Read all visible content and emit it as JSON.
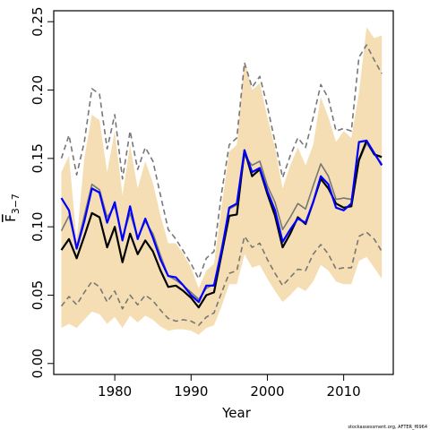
{
  "chart_data": {
    "type": "line",
    "xlabel": "Year",
    "ylabel": "F",
    "ylabel_subscript": "3−7",
    "footnote": "stockassessment.org, AFTER_f6964",
    "xlim": [
      1972,
      2016.5
    ],
    "ylim": [
      -0.008,
      0.258
    ],
    "x_ticks": [
      1980,
      1990,
      2000,
      2010
    ],
    "x_tick_labels": [
      "1980",
      "1990",
      "2000",
      "2010"
    ],
    "y_ticks": [
      0.0,
      0.05,
      0.1,
      0.15,
      0.2,
      0.25
    ],
    "y_tick_labels": [
      "0.00",
      "0.05",
      "0.10",
      "0.15",
      "0.20",
      "0.25"
    ],
    "colors": {
      "band": "#f5deb3",
      "black": "#000000",
      "blue": "#0000ff",
      "gray": "#777777",
      "dashed": "#777777"
    },
    "years": [
      1973,
      1974,
      1975,
      1976,
      1977,
      1978,
      1979,
      1980,
      1981,
      1982,
      1983,
      1984,
      1985,
      1986,
      1987,
      1988,
      1989,
      1990,
      1991,
      1992,
      1993,
      1994,
      1995,
      1996,
      1997,
      1998,
      1999,
      2000,
      2001,
      2002,
      2003,
      2004,
      2005,
      2006,
      2007,
      2008,
      2009,
      2010,
      2011,
      2012,
      2013,
      2014,
      2015
    ],
    "band": {
      "upper": [
        0.14,
        0.152,
        0.09,
        0.15,
        0.182,
        0.178,
        0.14,
        0.17,
        0.123,
        0.16,
        0.128,
        0.148,
        0.132,
        0.108,
        0.088,
        0.088,
        0.08,
        0.07,
        0.055,
        0.068,
        0.073,
        0.115,
        0.155,
        0.16,
        0.222,
        0.2,
        0.205,
        0.18,
        0.158,
        0.128,
        0.145,
        0.158,
        0.145,
        0.16,
        0.195,
        0.18,
        0.162,
        0.17,
        0.165,
        0.198,
        0.246,
        0.238,
        0.24
      ],
      "lower": [
        0.026,
        0.029,
        0.026,
        0.032,
        0.038,
        0.036,
        0.029,
        0.034,
        0.026,
        0.035,
        0.03,
        0.035,
        0.032,
        0.027,
        0.024,
        0.025,
        0.025,
        0.024,
        0.021,
        0.026,
        0.028,
        0.042,
        0.058,
        0.058,
        0.08,
        0.07,
        0.072,
        0.062,
        0.053,
        0.045,
        0.05,
        0.056,
        0.053,
        0.06,
        0.072,
        0.068,
        0.06,
        0.058,
        0.058,
        0.075,
        0.078,
        0.07,
        0.062
      ]
    },
    "series": [
      {
        "color": "#777777",
        "style": "dashed",
        "width": 1.6,
        "values": [
          0.15,
          0.167,
          0.138,
          0.162,
          0.201,
          0.197,
          0.157,
          0.182,
          0.135,
          0.17,
          0.142,
          0.158,
          0.148,
          0.123,
          0.098,
          0.091,
          0.082,
          0.073,
          0.062,
          0.077,
          0.082,
          0.125,
          0.16,
          0.165,
          0.22,
          0.202,
          0.21,
          0.188,
          0.162,
          0.136,
          0.152,
          0.165,
          0.158,
          0.18,
          0.204,
          0.194,
          0.17,
          0.172,
          0.17,
          0.224,
          0.233,
          0.222,
          0.212
        ]
      },
      {
        "color": "#777777",
        "style": "dashed",
        "width": 1.6,
        "values": [
          0.042,
          0.049,
          0.043,
          0.052,
          0.06,
          0.056,
          0.045,
          0.053,
          0.04,
          0.05,
          0.043,
          0.05,
          0.046,
          0.039,
          0.033,
          0.031,
          0.032,
          0.031,
          0.028,
          0.034,
          0.037,
          0.052,
          0.066,
          0.068,
          0.093,
          0.085,
          0.088,
          0.076,
          0.066,
          0.057,
          0.063,
          0.069,
          0.068,
          0.08,
          0.087,
          0.08,
          0.069,
          0.07,
          0.07,
          0.093,
          0.096,
          0.091,
          0.082
        ]
      },
      {
        "color": "#777777",
        "style": "solid",
        "width": 1.6,
        "values": [
          0.097,
          0.108,
          0.085,
          0.108,
          0.131,
          0.127,
          0.107,
          0.115,
          0.092,
          0.11,
          0.092,
          0.104,
          0.095,
          0.079,
          0.064,
          0.061,
          0.057,
          0.052,
          0.047,
          0.055,
          0.058,
          0.085,
          0.113,
          0.116,
          0.152,
          0.145,
          0.148,
          0.13,
          0.118,
          0.098,
          0.107,
          0.117,
          0.113,
          0.13,
          0.146,
          0.137,
          0.12,
          0.121,
          0.12,
          0.148,
          0.161,
          0.153,
          0.146
        ]
      },
      {
        "color": "#000000",
        "style": "solid",
        "width": 2.2,
        "values": [
          0.083,
          0.091,
          0.077,
          0.093,
          0.11,
          0.107,
          0.085,
          0.1,
          0.074,
          0.095,
          0.08,
          0.09,
          0.082,
          0.068,
          0.056,
          0.057,
          0.053,
          0.048,
          0.041,
          0.05,
          0.052,
          0.08,
          0.108,
          0.109,
          0.156,
          0.137,
          0.142,
          0.124,
          0.108,
          0.085,
          0.095,
          0.107,
          0.102,
          0.118,
          0.135,
          0.128,
          0.117,
          0.114,
          0.115,
          0.149,
          0.163,
          0.153,
          0.151
        ]
      },
      {
        "color": "#0000ff",
        "style": "solid",
        "width": 2.2,
        "values": [
          0.121,
          0.112,
          0.084,
          0.104,
          0.128,
          0.125,
          0.103,
          0.118,
          0.09,
          0.115,
          0.091,
          0.106,
          0.092,
          0.076,
          0.064,
          0.063,
          0.057,
          0.05,
          0.045,
          0.057,
          0.057,
          0.082,
          0.114,
          0.117,
          0.156,
          0.14,
          0.143,
          0.126,
          0.112,
          0.089,
          0.098,
          0.106,
          0.103,
          0.118,
          0.137,
          0.131,
          0.114,
          0.112,
          0.117,
          0.162,
          0.163,
          0.154,
          0.145
        ]
      }
    ]
  }
}
